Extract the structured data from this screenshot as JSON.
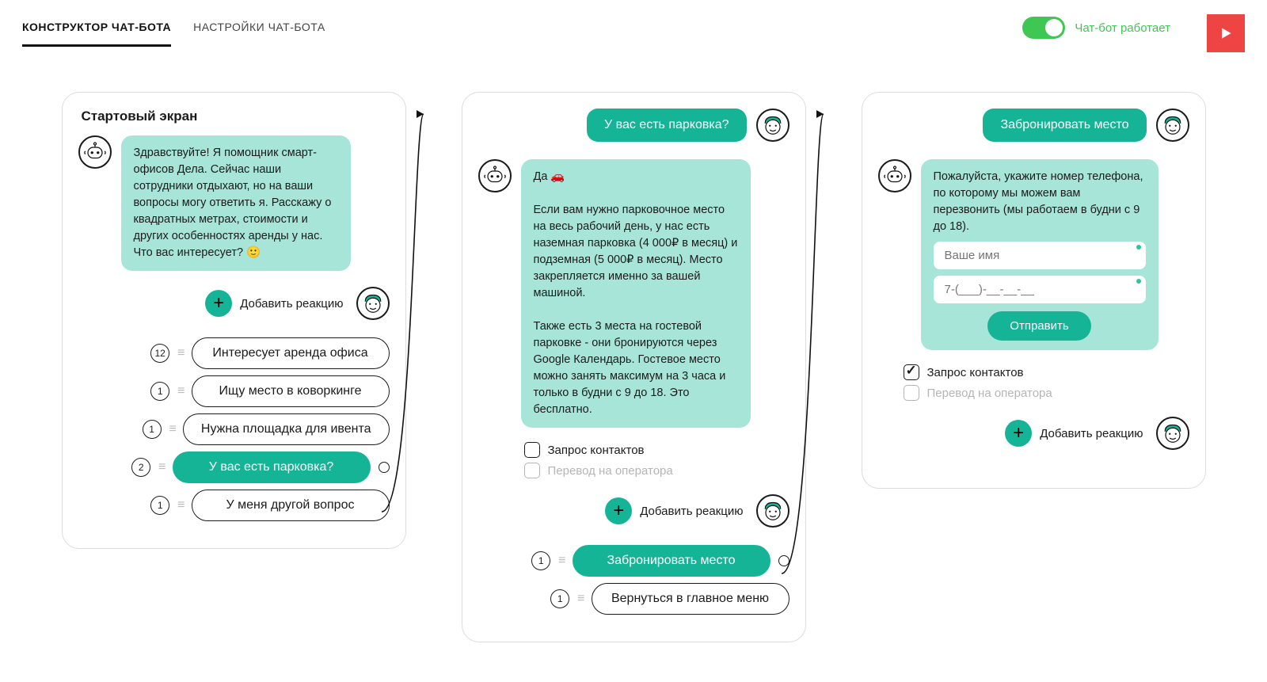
{
  "colors": {
    "teal": "#15b497",
    "teal_light": "#a7e5d8",
    "green": "#3fc754",
    "red": "#ee4444"
  },
  "header": {
    "tabs": [
      {
        "label": "КОНСТРУКТОР ЧАТ-БОТА",
        "active": true
      },
      {
        "label": "НАСТРОЙКИ ЧАТ-БОТА",
        "active": false
      }
    ],
    "status_label": "Чат-бот работает",
    "toggle_on": true
  },
  "common": {
    "add_reaction": "Добавить реакцию"
  },
  "card1": {
    "title": "Стартовый экран",
    "bot_message": "Здравствуйте! Я помощник смарт-офисов Дела. Сейчас наши сотрудники отдыхают, но на ваши вопросы могу ответить я. Расскажу о квадратных метрах, стоимости и других особенностях аренды у нас. Что вас интересует? 🙂",
    "options": [
      {
        "count": "12",
        "label": "Интересует аренда офиса",
        "selected": false
      },
      {
        "count": "1",
        "label": "Ищу место в коворкинге",
        "selected": false
      },
      {
        "count": "1",
        "label": "Нужна площадка для ивента",
        "selected": false
      },
      {
        "count": "2",
        "label": "У вас есть парковка?",
        "selected": true
      },
      {
        "count": "1",
        "label": "У меня другой вопрос",
        "selected": false
      }
    ]
  },
  "card2": {
    "user_message": "У вас есть парковка?",
    "bot_message": "Да 🚗\n\nЕсли вам нужно парковочное место на весь рабочий день, у нас есть наземная парковка (4 000₽ в месяц) и подземная (5 000₽ в месяц). Место закрепляется именно за вашей машиной.\n\nТакже есть 3 места на гостевой парковке - они бронируются через Google Календарь. Гостевое место можно занять максимум на 3 часа и только в будни с 9 до 18. Это бесплатно.",
    "checkboxes": [
      {
        "label": "Запрос контактов",
        "checked": false,
        "disabled": false
      },
      {
        "label": "Перевод на оператора",
        "checked": false,
        "disabled": true
      }
    ],
    "options": [
      {
        "count": "1",
        "label": "Забронировать место",
        "selected": true
      },
      {
        "count": "1",
        "label": "Вернуться в главное меню",
        "selected": false
      }
    ]
  },
  "card3": {
    "user_message": "Забронировать место",
    "bot_message": "Пожалуйста, укажите номер телефона, по которому мы можем вам перезвонить (мы работаем в будни с 9 до 18).",
    "form": {
      "name_placeholder": "Ваше имя",
      "phone_placeholder": "7-(___)-__-__-__",
      "submit": "Отправить"
    },
    "checkboxes": [
      {
        "label": "Запрос контактов",
        "checked": true,
        "disabled": false
      },
      {
        "label": "Перевод на оператора",
        "checked": false,
        "disabled": true
      }
    ]
  }
}
